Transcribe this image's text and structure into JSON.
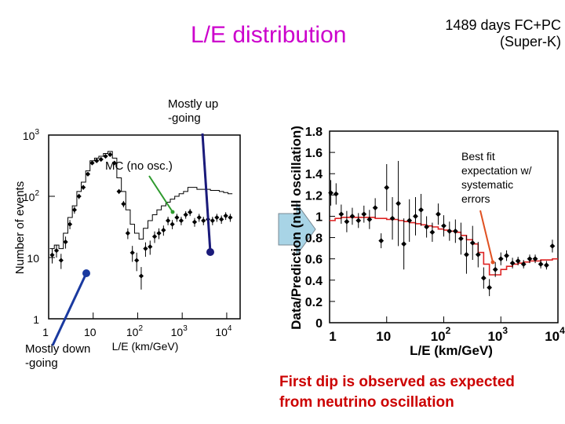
{
  "header": {
    "title": "L/E distribution",
    "subtitle_line1": "1489 days FC+PC",
    "subtitle_line2": "(Super-K)"
  },
  "annotations": {
    "mostly_up_line1": "Mostly up",
    "mostly_up_line2": "-going",
    "mc_label": "MC (no osc.)",
    "mostly_down_line1": "Mostly down",
    "mostly_down_line2": "-going",
    "best_fit_line1": "Best fit",
    "best_fit_line2": "expectation w/",
    "best_fit_line3": "systematic",
    "best_fit_line4": "errors"
  },
  "conclusion": {
    "line1": "First dip is observed as expected",
    "line2": "from neutrino oscillation"
  },
  "colors": {
    "title": "#cc00cc",
    "conclusion": "#cc0000",
    "pointer_up": "#1a1a7a",
    "pointer_down": "#1a3aa0",
    "pointer_mc": "#2e9a2e",
    "pointer_fit": "#e05020",
    "fit_line": "#dd2222",
    "arrow_fill": "#a8d4e6"
  },
  "chart_data": [
    {
      "type": "line",
      "title": "",
      "xlabel": "L/E (km/GeV)",
      "ylabel": "Number of events",
      "xscale": "log",
      "yscale": "log",
      "xlim": [
        1,
        20000
      ],
      "ylim": [
        1,
        1000
      ],
      "x_ticks": [
        {
          "base": "1",
          "exp": "",
          "value": 1
        },
        {
          "base": "10",
          "exp": "",
          "value": 10
        },
        {
          "base": "10",
          "exp": "2",
          "value": 100
        },
        {
          "base": "10",
          "exp": "3",
          "value": 1000
        },
        {
          "base": "10",
          "exp": "4",
          "value": 10000
        }
      ],
      "y_ticks": [
        {
          "base": "1",
          "exp": "",
          "value": 1
        },
        {
          "base": "10",
          "exp": "",
          "value": 10
        },
        {
          "base": "10",
          "exp": "2",
          "value": 100
        },
        {
          "base": "10",
          "exp": "3",
          "value": 1000
        }
      ],
      "series": [
        {
          "name": "Data",
          "x": [
            1.2,
            1.5,
            1.9,
            2.4,
            3.0,
            3.8,
            4.8,
            6.0,
            7.6,
            9.5,
            12,
            15,
            19,
            24,
            30,
            38,
            48,
            60,
            76,
            95,
            120,
            150,
            190,
            240,
            300,
            380,
            480,
            600,
            760,
            950,
            1200,
            1500,
            1900,
            2400,
            3000,
            3800,
            4800,
            6000,
            7600,
            9500,
            12000
          ],
          "y": [
            11,
            13,
            9,
            18,
            35,
            60,
            100,
            140,
            230,
            350,
            380,
            400,
            450,
            480,
            350,
            120,
            75,
            25,
            12,
            9,
            5,
            14,
            15,
            22,
            25,
            28,
            40,
            35,
            45,
            40,
            50,
            55,
            38,
            45,
            40,
            42,
            40,
            45,
            42,
            48,
            45
          ],
          "yerr": [
            3,
            3,
            2.5,
            4,
            6,
            8,
            10,
            12,
            15,
            18,
            19,
            20,
            21,
            22,
            19,
            11,
            9,
            5,
            3.5,
            3,
            2,
            3.7,
            3.9,
            4.7,
            5,
            5.3,
            6.3,
            6,
            6.7,
            6.3,
            7,
            7.4,
            6.2,
            6.7,
            6.3,
            6.5,
            6.3,
            6.7,
            6.5,
            6.9,
            6.7
          ]
        },
        {
          "name": "MC (no osc.)",
          "edges": [
            1.06,
            1.34,
            1.7,
            2.14,
            2.7,
            3.4,
            4.3,
            5.4,
            6.8,
            8.5,
            10.7,
            13.4,
            17,
            21.4,
            27,
            34,
            43,
            54,
            68,
            85,
            107,
            134,
            170,
            214,
            270,
            340,
            430,
            540,
            680,
            850,
            1070,
            1340,
            1700,
            2140,
            2700,
            3400,
            4300,
            5400,
            6800,
            8500,
            10700,
            13400
          ],
          "y": [
            14,
            16,
            14,
            25,
            45,
            70,
            120,
            170,
            260,
            380,
            420,
            450,
            500,
            540,
            420,
            200,
            120,
            60,
            35,
            25,
            20,
            30,
            40,
            50,
            60,
            70,
            80,
            90,
            100,
            110,
            120,
            140,
            140,
            130,
            130,
            130,
            125,
            125,
            120,
            115,
            110
          ]
        }
      ]
    },
    {
      "type": "line",
      "title": "",
      "xlabel": "L/E (km/GeV)",
      "ylabel": "Data/Prediction (null oscillation)",
      "xscale": "log",
      "xlim": [
        1,
        10000
      ],
      "ylim": [
        0,
        1.8
      ],
      "x_ticks": [
        {
          "base": "1",
          "exp": "",
          "value": 1
        },
        {
          "base": "10",
          "exp": "",
          "value": 10
        },
        {
          "base": "10",
          "exp": "2",
          "value": 100
        },
        {
          "base": "10",
          "exp": "3",
          "value": 1000
        },
        {
          "base": "10",
          "exp": "4",
          "value": 10000
        }
      ],
      "y_ticks": [
        "0",
        "0.2",
        "0.4",
        "0.6",
        "0.8",
        "1",
        "1.2",
        "1.4",
        "1.6",
        "1.8"
      ],
      "series": [
        {
          "name": "Data",
          "x": [
            1.05,
            1.3,
            1.6,
            2.0,
            2.5,
            3.2,
            4.0,
            5.0,
            6.3,
            8.0,
            10,
            12.6,
            16,
            20,
            25,
            32,
            40,
            50,
            63,
            80,
            100,
            126,
            160,
            200,
            250,
            320,
            400,
            500,
            630,
            800,
            1000,
            1260,
            1600,
            2000,
            2500,
            3200,
            4000,
            5000,
            6300,
            8000
          ],
          "y": [
            1.22,
            1.21,
            1.02,
            0.95,
            1.0,
            0.96,
            1.02,
            0.97,
            1.08,
            0.77,
            1.27,
            0.98,
            1.12,
            0.74,
            0.96,
            1.0,
            1.06,
            0.9,
            0.85,
            1.02,
            0.91,
            0.86,
            0.86,
            0.79,
            0.64,
            0.75,
            0.64,
            0.42,
            0.33,
            0.5,
            0.6,
            0.63,
            0.56,
            0.58,
            0.55,
            0.6,
            0.6,
            0.55,
            0.54,
            0.72
          ],
          "yerr": [
            0.12,
            0.1,
            0.09,
            0.1,
            0.08,
            0.07,
            0.08,
            0.09,
            0.09,
            0.07,
            0.22,
            0.2,
            0.4,
            0.24,
            0.2,
            0.18,
            0.15,
            0.1,
            0.09,
            0.1,
            0.1,
            0.09,
            0.11,
            0.15,
            0.18,
            0.16,
            0.12,
            0.1,
            0.08,
            0.07,
            0.06,
            0.05,
            0.05,
            0.04,
            0.04,
            0.04,
            0.04,
            0.04,
            0.04,
            0.06
          ]
        },
        {
          "name": "Best fit expectation w/ systematic errors",
          "x": [
            1.0,
            1.25,
            1.6,
            2.0,
            2.5,
            3.2,
            4.0,
            5.0,
            6.3,
            8.0,
            10,
            12.6,
            16,
            20,
            25,
            32,
            40,
            50,
            63,
            80,
            100,
            126,
            160,
            200,
            250,
            320,
            400,
            500,
            630,
            800,
            1000,
            1260,
            1600,
            2000,
            2500,
            3200,
            4000,
            5000,
            6300,
            8000,
            10000
          ],
          "y": [
            0.96,
            0.98,
            0.99,
            0.99,
            0.99,
            0.99,
            0.99,
            0.99,
            0.98,
            0.98,
            0.97,
            0.97,
            0.96,
            0.95,
            0.94,
            0.93,
            0.92,
            0.91,
            0.9,
            0.88,
            0.87,
            0.86,
            0.85,
            0.82,
            0.78,
            0.74,
            0.66,
            0.55,
            0.45,
            0.45,
            0.5,
            0.53,
            0.55,
            0.56,
            0.57,
            0.58,
            0.58,
            0.59,
            0.59,
            0.6,
            0.6
          ]
        }
      ]
    }
  ]
}
